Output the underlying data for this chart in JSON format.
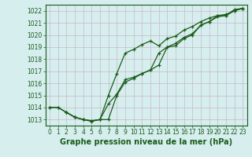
{
  "background_color": "#d6eeee",
  "grid_color": "#c8b8c8",
  "line_color": "#1a5c1a",
  "title": "Graphe pression niveau de la mer (hPa)",
  "title_fontsize": 7.0,
  "ylim": [
    1012.5,
    1022.5
  ],
  "xlim": [
    -0.5,
    23.5
  ],
  "yticks": [
    1013,
    1014,
    1015,
    1016,
    1017,
    1018,
    1019,
    1020,
    1021,
    1022
  ],
  "xticks": [
    0,
    1,
    2,
    3,
    4,
    5,
    6,
    7,
    8,
    9,
    10,
    11,
    12,
    13,
    14,
    15,
    16,
    17,
    18,
    19,
    20,
    21,
    22,
    23
  ],
  "tick_fontsize": 5.5,
  "line1_x": [
    0,
    1,
    2,
    3,
    4,
    5,
    6,
    7,
    8,
    9,
    10,
    11,
    12,
    13,
    14,
    15,
    16,
    17,
    18,
    19,
    20,
    21,
    22,
    23
  ],
  "line1_y": [
    1014.0,
    1014.0,
    1013.6,
    1013.2,
    1013.0,
    1012.9,
    1013.0,
    1013.0,
    1015.0,
    1016.1,
    1016.4,
    1016.8,
    1017.1,
    1018.5,
    1019.0,
    1019.1,
    1019.7,
    1020.0,
    1020.8,
    1021.1,
    1021.5,
    1021.6,
    1022.0,
    1022.2
  ],
  "line2_x": [
    0,
    1,
    2,
    3,
    4,
    5,
    6,
    7,
    8,
    9,
    10,
    11,
    12,
    13,
    14,
    15,
    16,
    17,
    18,
    19,
    20,
    21,
    22,
    23
  ],
  "line2_y": [
    1014.0,
    1014.0,
    1013.6,
    1013.2,
    1013.0,
    1012.9,
    1013.0,
    1015.0,
    1016.8,
    1018.5,
    1018.8,
    1019.2,
    1019.5,
    1019.1,
    1019.7,
    1019.9,
    1020.4,
    1020.7,
    1021.1,
    1021.4,
    1021.6,
    1021.7,
    1022.0,
    1022.2
  ],
  "line3_x": [
    2,
    3,
    4,
    5,
    6,
    7,
    8,
    9,
    10,
    11,
    12,
    13,
    14,
    15,
    16,
    17,
    18,
    19,
    20,
    21,
    22,
    23
  ],
  "line3_y": [
    1013.6,
    1013.2,
    1013.0,
    1012.85,
    1013.0,
    1014.3,
    1015.1,
    1016.3,
    1016.5,
    1016.8,
    1017.1,
    1017.5,
    1019.0,
    1019.3,
    1019.8,
    1020.1,
    1020.8,
    1021.1,
    1021.6,
    1021.6,
    1022.1,
    1022.2
  ]
}
